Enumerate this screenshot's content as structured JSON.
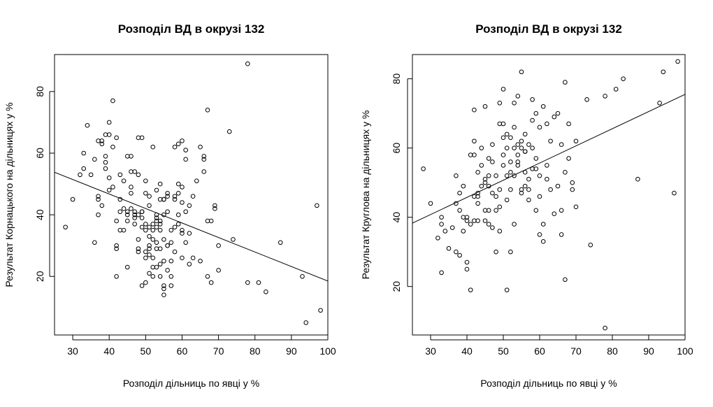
{
  "chart_data": [
    {
      "type": "scatter",
      "title": "Розподіл ВД в окрузі 132",
      "xlabel": "Розподіл дільниць по явці у %",
      "ylabel": "Результат Корнацького на дільницях у %",
      "xlim": [
        25,
        100
      ],
      "ylim": [
        1,
        92
      ],
      "xticks": [
        30,
        40,
        50,
        60,
        70,
        80,
        90,
        100
      ],
      "yticks": [
        20,
        40,
        60,
        80
      ],
      "grid": false,
      "trendline": {
        "x": [
          25,
          100
        ],
        "y": [
          53.8,
          18.5
        ]
      },
      "x": [
        28,
        30,
        32,
        33,
        33,
        34,
        35,
        36,
        36,
        37,
        37,
        37,
        37,
        38,
        38,
        38,
        39,
        39,
        39,
        39,
        40,
        40,
        40,
        40,
        41,
        41,
        41,
        42,
        42,
        42,
        42,
        42,
        43,
        43,
        43,
        43,
        44,
        44,
        44,
        45,
        45,
        45,
        45,
        45,
        46,
        46,
        46,
        46,
        46,
        47,
        47,
        47,
        47,
        47,
        48,
        48,
        48,
        48,
        48,
        48,
        49,
        49,
        49,
        49,
        49,
        49,
        50,
        50,
        50,
        50,
        50,
        50,
        50,
        51,
        51,
        51,
        51,
        51,
        51,
        51,
        51,
        52,
        52,
        52,
        52,
        52,
        52,
        52,
        53,
        53,
        53,
        53,
        53,
        53,
        53,
        53,
        54,
        54,
        54,
        54,
        54,
        54,
        54,
        54,
        55,
        55,
        55,
        55,
        55,
        55,
        55,
        55,
        56,
        56,
        56,
        56,
        56,
        56,
        57,
        57,
        57,
        57,
        57,
        58,
        58,
        58,
        58,
        58,
        59,
        59,
        59,
        59,
        59,
        60,
        60,
        60,
        60,
        60,
        60,
        61,
        61,
        61,
        61,
        62,
        62,
        62,
        63,
        63,
        64,
        65,
        65,
        66,
        66,
        66,
        67,
        67,
        67,
        68,
        68,
        69,
        69,
        70,
        70,
        73,
        74,
        78,
        78,
        81,
        83,
        87,
        93,
        94,
        97,
        98
      ],
      "y": [
        36,
        45,
        53,
        55,
        60,
        69,
        53,
        31,
        58,
        40,
        45,
        46,
        64,
        63,
        64,
        43,
        55,
        57,
        59,
        66,
        52,
        48,
        66,
        70,
        77,
        62,
        49,
        38,
        65,
        30,
        29,
        20,
        53,
        45,
        41,
        35,
        51,
        42,
        35,
        59,
        41,
        38,
        23,
        40,
        54,
        59,
        49,
        47,
        42,
        40,
        39,
        54,
        41,
        37,
        65,
        40,
        53,
        32,
        29,
        28,
        41,
        36,
        39,
        17,
        65,
        41,
        37,
        47,
        51,
        28,
        26,
        18,
        35,
        46,
        33,
        43,
        30,
        29,
        27,
        21,
        36,
        62,
        37,
        35,
        32,
        20,
        23,
        26,
        48,
        39,
        36,
        38,
        31,
        40,
        29,
        23,
        20,
        24,
        45,
        35,
        38,
        50,
        37,
        29,
        14,
        16,
        32,
        45,
        45,
        40,
        25,
        17,
        47,
        46,
        41,
        30,
        22,
        30,
        31,
        25,
        35,
        17,
        20,
        62,
        46,
        45,
        28,
        36,
        47,
        40,
        63,
        50,
        37,
        35,
        64,
        49,
        44,
        34,
        26,
        31,
        61,
        58,
        41,
        34,
        24,
        43,
        26,
        46,
        51,
        62,
        25,
        59,
        54,
        58,
        38,
        74,
        20,
        38,
        18,
        43,
        42,
        22,
        30,
        67,
        32,
        89,
        18,
        18,
        15,
        31,
        20,
        5,
        43,
        9
      ]
    },
    {
      "type": "scatter",
      "title": "Розподіл ВД в окрузі 132",
      "xlabel": "Розподіл дільниць по явці у %",
      "ylabel": "Результат Круглова на дільницях у %",
      "xlim": [
        25,
        100
      ],
      "ylim": [
        6,
        87
      ],
      "xticks": [
        30,
        40,
        50,
        60,
        70,
        80,
        90,
        100
      ],
      "yticks": [
        20,
        40,
        60,
        80
      ],
      "grid": false,
      "trendline": {
        "x": [
          25,
          100
        ],
        "y": [
          38.3,
          75.5
        ]
      },
      "x": [
        28,
        30,
        32,
        33,
        33,
        33,
        34,
        35,
        36,
        37,
        37,
        37,
        38,
        38,
        38,
        39,
        39,
        39,
        40,
        40,
        40,
        40,
        41,
        41,
        41,
        42,
        42,
        42,
        42,
        42,
        43,
        43,
        43,
        43,
        43,
        44,
        44,
        44,
        45,
        45,
        45,
        45,
        45,
        46,
        46,
        46,
        46,
        46,
        47,
        47,
        47,
        47,
        48,
        48,
        48,
        48,
        49,
        49,
        49,
        49,
        49,
        50,
        50,
        50,
        50,
        50,
        51,
        51,
        51,
        51,
        51,
        52,
        52,
        52,
        52,
        52,
        53,
        53,
        53,
        53,
        53,
        54,
        54,
        54,
        54,
        54,
        55,
        55,
        55,
        55,
        55,
        56,
        56,
        56,
        56,
        56,
        57,
        57,
        57,
        57,
        58,
        58,
        58,
        58,
        59,
        59,
        59,
        59,
        60,
        60,
        60,
        60,
        61,
        61,
        61,
        62,
        62,
        62,
        63,
        63,
        64,
        64,
        65,
        65,
        66,
        66,
        66,
        67,
        67,
        67,
        68,
        68,
        69,
        69,
        70,
        70,
        73,
        74,
        78,
        78,
        81,
        83,
        87,
        93,
        94,
        97,
        98
      ],
      "y": [
        54,
        44,
        34,
        24,
        38,
        40,
        36,
        31,
        37,
        52,
        30,
        44,
        47,
        42,
        29,
        49,
        36,
        40,
        39,
        27,
        40,
        25,
        19,
        38,
        58,
        46,
        62,
        71,
        58,
        39,
        53,
        47,
        44,
        39,
        46,
        55,
        60,
        49,
        51,
        50,
        42,
        39,
        72,
        38,
        42,
        49,
        57,
        52,
        61,
        56,
        47,
        37,
        52,
        46,
        42,
        30,
        67,
        48,
        43,
        73,
        36,
        63,
        77,
        55,
        67,
        58,
        64,
        60,
        52,
        45,
        19,
        56,
        63,
        53,
        30,
        48,
        66,
        60,
        73,
        52,
        38,
        55,
        61,
        75,
        56,
        58,
        60,
        82,
        62,
        48,
        47,
        53,
        59,
        64,
        59,
        49,
        61,
        51,
        48,
        45,
        74,
        54,
        60,
        68,
        57,
        70,
        54,
        42,
        52,
        66,
        46,
        35,
        33,
        72,
        38,
        55,
        67,
        51,
        62,
        48,
        69,
        41,
        70,
        49,
        61,
        42,
        35,
        53,
        79,
        22,
        67,
        57,
        48,
        50,
        43,
        62,
        74,
        32,
        8,
        75,
        77,
        80,
        51,
        73,
        82,
        47,
        85
      ]
    }
  ]
}
